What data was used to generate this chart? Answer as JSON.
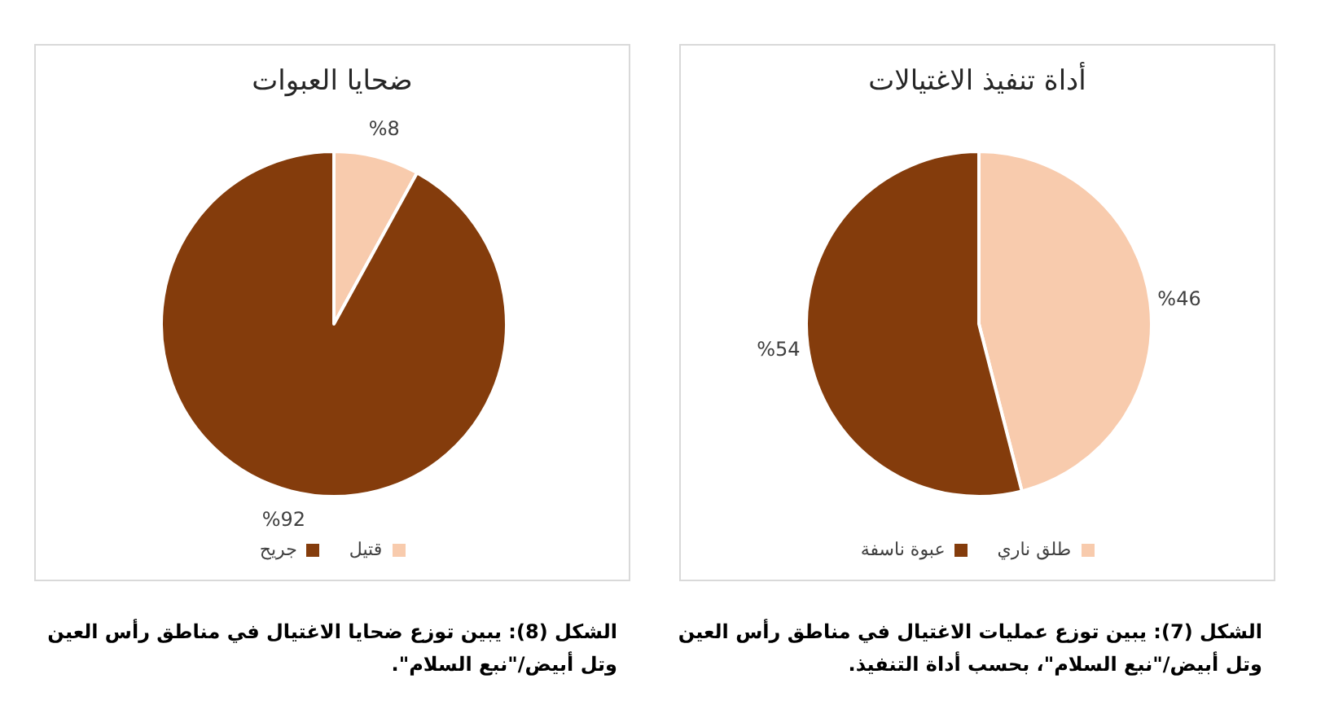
{
  "chart_data": [
    {
      "type": "pie",
      "title": "أداة تنفيذ الاغتيالات",
      "categories": [
        "طلق ناري",
        "عبوة ناسفة"
      ],
      "values": [
        46,
        54
      ],
      "colors": [
        "#f8cbad",
        "#843c0c"
      ],
      "value_labels": [
        "%46",
        "%54"
      ],
      "legend": "bottom",
      "annotations": [
        "الشكل (7): يبين توزع عمليات الاغتيال في مناطق رأس العين وتل أبيض/\"نبع السلام\"، بحسب أداة التنفيذ."
      ]
    },
    {
      "type": "pie",
      "title": "ضحايا العبوات",
      "categories": [
        "قتيل",
        "جريح"
      ],
      "values": [
        8,
        92
      ],
      "colors": [
        "#f8cbad",
        "#843c0c"
      ],
      "value_labels": [
        "%8",
        "%92"
      ],
      "legend": "bottom",
      "annotations": [
        "الشكل (8): يبين توزع ضحايا الاغتيال في مناطق رأس العين وتل أبيض/\"نبع السلام\"."
      ]
    }
  ]
}
